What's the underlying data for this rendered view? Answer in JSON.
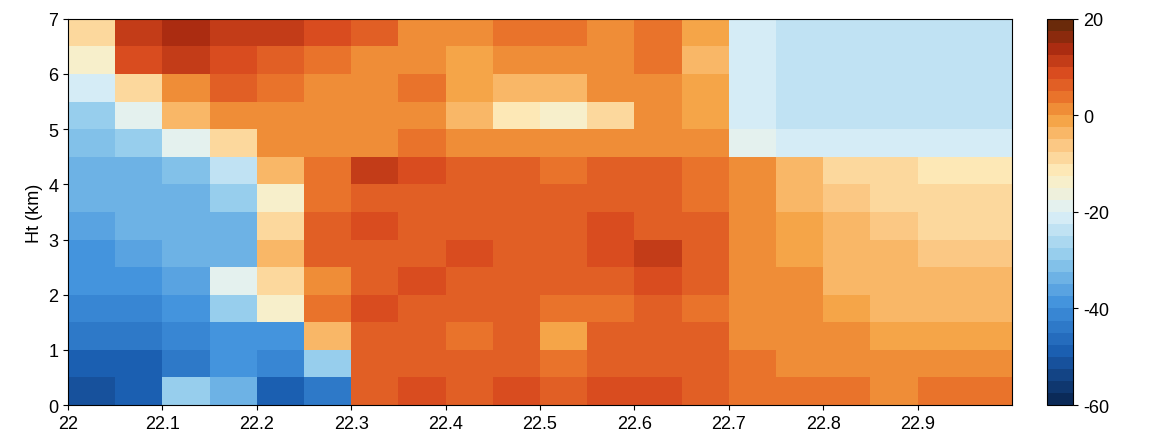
{
  "chart_data": {
    "type": "heatmap",
    "y_label": "Ht (km)",
    "x_edges": [
      22,
      22.05,
      22.1,
      22.15,
      22.2,
      22.25,
      22.3,
      22.35,
      22.4,
      22.45,
      22.5,
      22.55,
      22.6,
      22.65,
      22.7,
      22.75,
      22.8,
      22.85,
      22.9,
      22.95,
      23
    ],
    "y_edges": [
      0,
      0.5,
      1,
      1.5,
      2,
      2.5,
      3,
      3.5,
      4,
      4.5,
      5,
      5.5,
      6,
      6.5,
      7
    ],
    "cells": [
      [
        -52,
        -50,
        -28,
        -35,
        -48,
        -45,
        6,
        8,
        7,
        8,
        7,
        9,
        8,
        7,
        4,
        3,
        3,
        2,
        3,
        3
      ],
      [
        -50,
        -48,
        -45,
        -40,
        -42,
        -30,
        5,
        7,
        6,
        5,
        4,
        5,
        7,
        6,
        3,
        2,
        2,
        0,
        1,
        0
      ],
      [
        -45,
        -44,
        -42,
        -40,
        -38,
        -5,
        7,
        6,
        4,
        5,
        -2,
        5,
        6,
        5,
        2,
        0,
        0,
        -2,
        -1,
        -2
      ],
      [
        -42,
        -42,
        -40,
        -30,
        -15,
        3,
        8,
        7,
        5,
        6,
        3,
        4,
        6,
        4,
        2,
        0,
        -2,
        -3,
        -3,
        -4
      ],
      [
        -40,
        -38,
        -36,
        -20,
        -10,
        0,
        6,
        8,
        6,
        5,
        5,
        7,
        9,
        5,
        2,
        0,
        -3,
        -4,
        -5,
        -5
      ],
      [
        -38,
        -36,
        -35,
        -35,
        -5,
        5,
        7,
        7,
        8,
        6,
        6,
        8,
        12,
        6,
        1,
        -1,
        -3,
        -5,
        -6,
        -6
      ],
      [
        -36,
        -35,
        -34,
        -33,
        -10,
        5,
        8,
        7,
        6,
        7,
        6,
        8,
        7,
        5,
        1,
        -2,
        -5,
        -6,
        -8,
        -8
      ],
      [
        -35,
        -34,
        -33,
        -30,
        -15,
        4,
        7,
        6,
        5,
        6,
        5,
        6,
        6,
        4,
        0,
        -3,
        -6,
        -8,
        -9,
        -9
      ],
      [
        -34,
        -33,
        -32,
        -25,
        -5,
        3,
        10,
        8,
        5,
        5,
        4,
        5,
        6,
        4,
        0,
        -4,
        -8,
        -10,
        -12,
        -12
      ],
      [
        -32,
        -30,
        -20,
        -8,
        0,
        2,
        2,
        3,
        0,
        0,
        0,
        0,
        2,
        0,
        -18,
        -22,
        -22,
        -22,
        -22,
        -22
      ],
      [
        -30,
        -18,
        -5,
        0,
        2,
        0,
        0,
        2,
        -5,
        -12,
        -15,
        -10,
        0,
        -2,
        -22,
        -24,
        -24,
        -24,
        -24,
        -24
      ],
      [
        -22,
        -8,
        2,
        5,
        3,
        0,
        2,
        3,
        -2,
        -3,
        -4,
        0,
        2,
        -2,
        -22,
        -24,
        -24,
        -24,
        -24,
        -24
      ],
      [
        -15,
        8,
        10,
        8,
        6,
        4,
        2,
        0,
        -2,
        2,
        0,
        2,
        3,
        -3,
        -22,
        -24,
        -24,
        -24,
        -24,
        -24
      ],
      [
        -10,
        12,
        14,
        12,
        10,
        8,
        5,
        0,
        2,
        4,
        3,
        2,
        3,
        -2,
        -22,
        -24,
        -24,
        -25,
        -25,
        -25
      ]
    ],
    "xlim": [
      22,
      23
    ],
    "xticks": [
      22,
      22.1,
      22.2,
      22.3,
      22.4,
      22.5,
      22.6,
      22.7,
      22.8,
      22.9
    ],
    "ylim": [
      0,
      7
    ],
    "yticks": [
      0,
      1,
      2,
      3,
      4,
      5,
      6,
      7
    ],
    "colorbar_range": [
      -60,
      20
    ],
    "colorbar_ticks": [
      -60,
      -40,
      -20,
      0,
      20
    ]
  }
}
